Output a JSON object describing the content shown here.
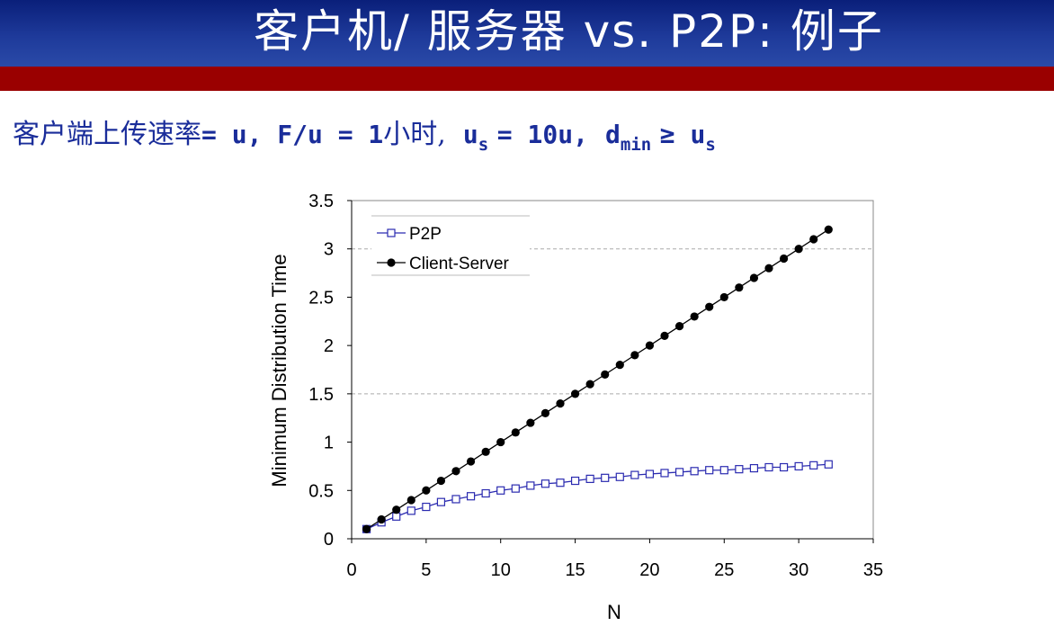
{
  "slide": {
    "title": "客户机/ 服务器 vs. P2P: 例子",
    "subtitle": {
      "p1": "客户端上传速率",
      "p2": "= u, F/u = 1",
      "p3": "小时,",
      "p4": "u",
      "p4_sub": "s",
      "p5": "= 10u,",
      "p6": "d",
      "p6_sub": "min",
      "p7": "≥ u",
      "p7_sub": "s"
    }
  },
  "colors": {
    "header_blue": "#1e3a9a",
    "header_red": "#9a0000",
    "subtitle_text": "#1a2d9a",
    "p2p_series": "#2b2bb0",
    "cs_series": "#000000"
  },
  "chart_data": {
    "type": "line",
    "xlabel": "N",
    "ylabel": "Minimum Distribution Time",
    "xlim": [
      0,
      35
    ],
    "ylim": [
      0,
      3.5
    ],
    "xticks": [
      0,
      5,
      10,
      15,
      20,
      25,
      30,
      35
    ],
    "yticks": [
      0,
      0.5,
      1,
      1.5,
      2,
      2.5,
      3,
      3.5
    ],
    "grid_y_dashed_at": [
      1.5,
      3
    ],
    "legend": {
      "position": "top-left-inside"
    },
    "series": [
      {
        "name": "P2P",
        "marker": "open-square",
        "x": [
          1,
          2,
          3,
          4,
          5,
          6,
          7,
          8,
          9,
          10,
          11,
          12,
          13,
          14,
          15,
          16,
          17,
          18,
          19,
          20,
          21,
          22,
          23,
          24,
          25,
          26,
          27,
          28,
          29,
          30,
          31,
          32
        ],
        "values": [
          0.1,
          0.17,
          0.23,
          0.29,
          0.33,
          0.38,
          0.41,
          0.44,
          0.47,
          0.5,
          0.52,
          0.55,
          0.57,
          0.58,
          0.6,
          0.62,
          0.63,
          0.64,
          0.66,
          0.67,
          0.68,
          0.69,
          0.7,
          0.71,
          0.71,
          0.72,
          0.73,
          0.74,
          0.74,
          0.75,
          0.76,
          0.77
        ]
      },
      {
        "name": "Client-Server",
        "marker": "filled-circle",
        "x": [
          1,
          2,
          3,
          4,
          5,
          6,
          7,
          8,
          9,
          10,
          11,
          12,
          13,
          14,
          15,
          16,
          17,
          18,
          19,
          20,
          21,
          22,
          23,
          24,
          25,
          26,
          27,
          28,
          29,
          30,
          31,
          32
        ],
        "values": [
          0.1,
          0.2,
          0.3,
          0.4,
          0.5,
          0.6,
          0.7,
          0.8,
          0.9,
          1.0,
          1.1,
          1.2,
          1.3,
          1.4,
          1.5,
          1.6,
          1.7,
          1.8,
          1.9,
          2.0,
          2.1,
          2.2,
          2.3,
          2.4,
          2.5,
          2.6,
          2.7,
          2.8,
          2.9,
          3.0,
          3.1,
          3.2
        ]
      }
    ]
  }
}
